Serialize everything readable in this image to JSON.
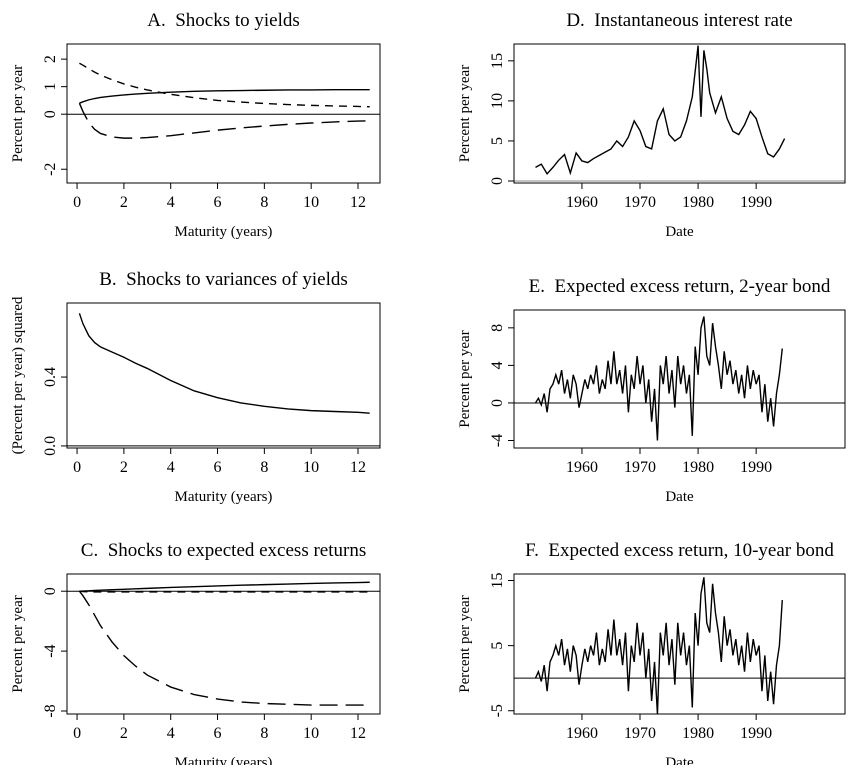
{
  "chart_data": [
    {
      "type": "line",
      "title": "A.  Shocks to yields",
      "xlabel": "Maturity (years)",
      "ylabel": "Percent per year",
      "xlim": [
        -0.43,
        12.94
      ],
      "xticks": [
        0,
        2,
        4,
        6,
        8,
        10,
        12
      ],
      "ylim": [
        -2.5,
        2.55
      ],
      "yticks": [
        -2,
        0,
        1,
        2
      ],
      "hline": 0,
      "hline_color": "#000000",
      "x": [
        0.1,
        0.25,
        0.5,
        0.75,
        1,
        1.5,
        2,
        2.5,
        3,
        4,
        5,
        6,
        7,
        8,
        9,
        10,
        11,
        12,
        12.5
      ],
      "series": [
        {
          "color": "#000000",
          "dash": "none",
          "values": [
            0.4,
            0.45,
            0.52,
            0.57,
            0.61,
            0.66,
            0.7,
            0.73,
            0.76,
            0.8,
            0.83,
            0.85,
            0.86,
            0.87,
            0.88,
            0.88,
            0.89,
            0.89,
            0.89
          ]
        },
        {
          "color": "#000000",
          "dash": "8 6",
          "values": [
            1.85,
            1.78,
            1.65,
            1.53,
            1.42,
            1.25,
            1.1,
            0.98,
            0.88,
            0.72,
            0.6,
            0.5,
            0.44,
            0.39,
            0.35,
            0.32,
            0.3,
            0.28,
            0.27
          ]
        },
        {
          "color": "#000000",
          "dash": "18 8",
          "values": [
            0.4,
            0.1,
            -0.3,
            -0.55,
            -0.7,
            -0.83,
            -0.87,
            -0.87,
            -0.85,
            -0.78,
            -0.68,
            -0.58,
            -0.5,
            -0.43,
            -0.37,
            -0.32,
            -0.28,
            -0.25,
            -0.24
          ]
        }
      ]
    },
    {
      "type": "line",
      "title": "B.  Shocks to variances of yields",
      "xlabel": "Maturity (years)",
      "ylabel": "(Percent per year) squared",
      "xlim": [
        -0.43,
        12.94
      ],
      "xticks": [
        0,
        2,
        4,
        6,
        8,
        10,
        12
      ],
      "ylim": [
        -0.012,
        0.83
      ],
      "yticks": [
        {
          "value": 0,
          "label": "0.0"
        },
        {
          "value": 0.4,
          "label": "0.4"
        }
      ],
      "hline": 0,
      "hline_color": "#000000",
      "x": [
        0.1,
        0.25,
        0.5,
        0.75,
        1,
        1.5,
        2,
        2.5,
        3,
        4,
        5,
        6,
        7,
        8,
        9,
        10,
        11,
        12,
        12.5
      ],
      "series": [
        {
          "color": "#000000",
          "dash": "none",
          "values": [
            0.77,
            0.71,
            0.64,
            0.6,
            0.575,
            0.545,
            0.515,
            0.48,
            0.45,
            0.38,
            0.32,
            0.28,
            0.25,
            0.23,
            0.215,
            0.205,
            0.2,
            0.195,
            0.19
          ]
        }
      ]
    },
    {
      "type": "line",
      "title": "C.  Shocks to expected excess returns",
      "xlabel": "Maturity (years)",
      "ylabel": "Percent per year",
      "xlim": [
        -0.43,
        12.94
      ],
      "xticks": [
        0,
        2,
        4,
        6,
        8,
        10,
        12
      ],
      "ylim": [
        -8.2,
        1.15
      ],
      "yticks": [
        -8,
        -4,
        0
      ],
      "hline": 0,
      "hline_color": "#000000",
      "x": [
        0.1,
        0.25,
        0.5,
        0.75,
        1,
        1.5,
        2,
        2.5,
        3,
        4,
        5,
        6,
        7,
        8,
        9,
        10,
        11,
        12,
        12.5
      ],
      "series": [
        {
          "color": "#000000",
          "dash": "none",
          "values": [
            0,
            0.01,
            0.03,
            0.05,
            0.07,
            0.1,
            0.13,
            0.16,
            0.19,
            0.25,
            0.3,
            0.35,
            0.4,
            0.44,
            0.48,
            0.52,
            0.55,
            0.58,
            0.6
          ]
        },
        {
          "color": "#000000",
          "dash": "8 6",
          "values": [
            0,
            -0.02,
            -0.04,
            -0.05,
            -0.05,
            -0.05,
            -0.05,
            -0.05,
            -0.05,
            -0.05,
            -0.05,
            -0.05,
            -0.05,
            -0.05,
            -0.05,
            -0.05,
            -0.05,
            -0.05,
            -0.05
          ]
        },
        {
          "color": "#000000",
          "dash": "18 8",
          "values": [
            0,
            -0.3,
            -0.9,
            -1.6,
            -2.3,
            -3.4,
            -4.3,
            -5.0,
            -5.6,
            -6.4,
            -6.9,
            -7.2,
            -7.4,
            -7.5,
            -7.55,
            -7.6,
            -7.6,
            -7.6,
            -7.6
          ]
        }
      ]
    },
    {
      "type": "line",
      "title": "D.  Instantaneous interest rate",
      "xlabel": "Date",
      "ylabel": "Percent per year",
      "xlim": [
        1948.3,
        2005.3
      ],
      "xticks": [
        1960,
        1970,
        1980,
        1990
      ],
      "ylim": [
        -0.25,
        17.1
      ],
      "yticks": [
        0,
        5,
        10,
        15
      ],
      "hline": 0,
      "hline_color": "#888888",
      "x": [
        1952,
        1953,
        1954,
        1955,
        1956,
        1957,
        1958,
        1959,
        1960,
        1961,
        1962,
        1963,
        1964,
        1965,
        1966,
        1967,
        1968,
        1969,
        1970,
        1971,
        1972,
        1973,
        1974,
        1975,
        1976,
        1977,
        1978,
        1979,
        1980,
        1980.5,
        1981,
        1981.5,
        1982,
        1983,
        1984,
        1985,
        1986,
        1987,
        1988,
        1989,
        1990,
        1991,
        1992,
        1993,
        1994,
        1994.9
      ],
      "series": [
        {
          "color": "#000000",
          "dash": "none",
          "values": [
            1.7,
            2.1,
            0.9,
            1.7,
            2.6,
            3.3,
            1.0,
            3.5,
            2.5,
            2.3,
            2.8,
            3.2,
            3.6,
            4.0,
            5.0,
            4.3,
            5.5,
            7.5,
            6.3,
            4.3,
            4.0,
            7.5,
            9.0,
            5.8,
            5.0,
            5.5,
            7.5,
            10.5,
            16.9,
            8.0,
            16.3,
            14,
            11,
            8.5,
            10.5,
            7.8,
            6.2,
            5.8,
            7.0,
            8.7,
            7.8,
            5.5,
            3.4,
            3.0,
            4.0,
            5.3
          ]
        }
      ]
    },
    {
      "type": "line",
      "title": "E.  Expected excess return, 2-year bond",
      "xlabel": "Date",
      "ylabel": "Percent per year",
      "xlim": [
        1948.3,
        2005.3
      ],
      "xticks": [
        1960,
        1970,
        1980,
        1990
      ],
      "ylim": [
        -4.8,
        9.9
      ],
      "yticks": [
        -4,
        0,
        4,
        8
      ],
      "hline": 0,
      "hline_color": "#000000",
      "x": [
        1952,
        1952.5,
        1953,
        1953.5,
        1954,
        1954.5,
        1955,
        1955.5,
        1956,
        1956.5,
        1957,
        1957.5,
        1958,
        1958.5,
        1959,
        1959.5,
        1960,
        1960.5,
        1961,
        1961.5,
        1962,
        1962.5,
        1963,
        1963.5,
        1964,
        1964.5,
        1965,
        1965.5,
        1966,
        1966.5,
        1967,
        1967.5,
        1968,
        1968.5,
        1969,
        1969.5,
        1970,
        1970.5,
        1971,
        1971.5,
        1972,
        1972.5,
        1973,
        1973.5,
        1974,
        1974.5,
        1975,
        1975.5,
        1976,
        1976.5,
        1977,
        1977.5,
        1978,
        1978.5,
        1979,
        1979.5,
        1980,
        1980.5,
        1981,
        1981.5,
        1982,
        1982.5,
        1983,
        1983.5,
        1984,
        1984.5,
        1985,
        1985.5,
        1986,
        1986.5,
        1987,
        1987.5,
        1988,
        1988.5,
        1989,
        1989.5,
        1990,
        1990.5,
        1991,
        1991.5,
        1992,
        1992.5,
        1993,
        1993.5,
        1994,
        1994.5
      ],
      "series": [
        {
          "color": "#000000",
          "dash": "none",
          "values": [
            0,
            0.5,
            -0.2,
            1,
            -1,
            1.5,
            2,
            3,
            2,
            3.5,
            1,
            2.5,
            0.5,
            3,
            2,
            -0.5,
            1,
            2.5,
            1.5,
            3,
            2,
            4,
            1,
            2.5,
            1.5,
            4.5,
            2,
            5.5,
            2,
            3.5,
            1,
            4,
            -1,
            3,
            1.5,
            5,
            2,
            4,
            0,
            2.5,
            -2,
            1.5,
            -4,
            4,
            2,
            5,
            1,
            3.5,
            -0.5,
            5,
            2,
            4,
            1,
            3,
            -3.5,
            6,
            3,
            8,
            9.2,
            5,
            4,
            8.5,
            6,
            4,
            1.5,
            5.5,
            3,
            4.5,
            2,
            3.5,
            1,
            3,
            0.5,
            4,
            1.5,
            3.5,
            2,
            3,
            -1,
            2,
            -2,
            0.5,
            -2.5,
            1,
            3,
            5.8
          ]
        }
      ]
    },
    {
      "type": "line",
      "title": "F.  Expected excess return, 10-year bond",
      "xlabel": "Date",
      "ylabel": "Percent per year",
      "xlim": [
        1948.3,
        2005.3
      ],
      "xticks": [
        1960,
        1970,
        1980,
        1990
      ],
      "ylim": [
        -5.5,
        16
      ],
      "yticks": [
        -5,
        5,
        15
      ],
      "hline": 0,
      "hline_color": "#000000",
      "x": [
        1952,
        1952.5,
        1953,
        1953.5,
        1954,
        1954.5,
        1955,
        1955.5,
        1956,
        1956.5,
        1957,
        1957.5,
        1958,
        1958.5,
        1959,
        1959.5,
        1960,
        1960.5,
        1961,
        1961.5,
        1962,
        1962.5,
        1963,
        1963.5,
        1964,
        1964.5,
        1965,
        1965.5,
        1966,
        1966.5,
        1967,
        1967.5,
        1968,
        1968.5,
        1969,
        1969.5,
        1970,
        1970.5,
        1971,
        1971.5,
        1972,
        1972.5,
        1973,
        1973.5,
        1974,
        1974.5,
        1975,
        1975.5,
        1976,
        1976.5,
        1977,
        1977.5,
        1978,
        1978.5,
        1979,
        1979.5,
        1980,
        1980.5,
        1981,
        1981.5,
        1982,
        1982.5,
        1983,
        1983.5,
        1984,
        1984.5,
        1985,
        1985.5,
        1986,
        1986.5,
        1987,
        1987.5,
        1988,
        1988.5,
        1989,
        1989.5,
        1990,
        1990.5,
        1991,
        1991.5,
        1992,
        1992.5,
        1993,
        1993.5,
        1994,
        1994.5
      ],
      "series": [
        {
          "color": "#000000",
          "dash": "none",
          "values": [
            0,
            1,
            -0.5,
            2,
            -2,
            2.5,
            3.5,
            5,
            3.5,
            6,
            2,
            4.5,
            1,
            5,
            3.5,
            -1,
            2,
            4.5,
            2.5,
            5,
            3.5,
            7,
            2,
            4.5,
            2.5,
            7.5,
            3.5,
            9,
            3.5,
            6,
            2,
            7,
            -2,
            5,
            2.5,
            8.5,
            3.5,
            7,
            0,
            4.5,
            -3.5,
            2.5,
            -5.5,
            7,
            3.5,
            8.5,
            2,
            6,
            -1,
            8.5,
            3.5,
            7,
            2,
            5,
            -4.5,
            10,
            5,
            13,
            15.5,
            8.5,
            7,
            14.5,
            10,
            7,
            2.5,
            9.5,
            5,
            7.5,
            3.5,
            6,
            2,
            5,
            1,
            7,
            2.5,
            6,
            3.5,
            5,
            -2,
            3.5,
            -3.5,
            1,
            -4,
            2,
            5,
            12
          ]
        }
      ]
    }
  ]
}
